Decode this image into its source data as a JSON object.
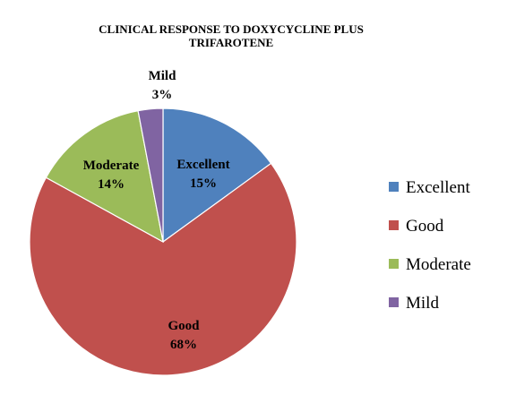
{
  "chart_data": {
    "type": "pie",
    "title": "CLINICAL RESPONSE TO DOXYCYCLINE PLUS TRIFAROTENE",
    "categories": [
      "Excellent",
      "Good",
      "Moderate",
      "Mild"
    ],
    "values": [
      15,
      68,
      14,
      3
    ],
    "data_labels": [
      {
        "name": "Excellent",
        "value": "15%"
      },
      {
        "name": "Good",
        "value": "68%"
      },
      {
        "name": "Moderate",
        "value": "14%"
      },
      {
        "name": "Mild",
        "value": "3%"
      }
    ],
    "colors": [
      "#4f81bd",
      "#c0504d",
      "#9bbb59",
      "#8064a2"
    ],
    "legend_position": "right"
  },
  "title_lines": [
    "CLINICAL RESPONSE TO DOXYCYCLINE PLUS",
    "TRIFAROTENE"
  ]
}
